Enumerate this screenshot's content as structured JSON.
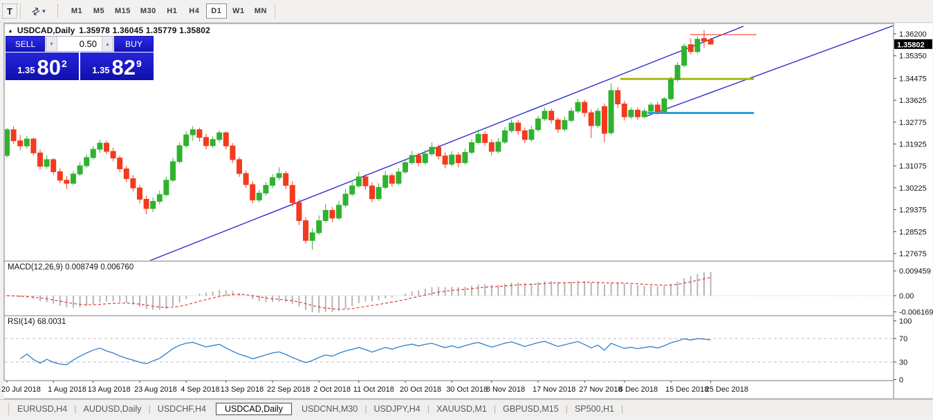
{
  "toolbar": {
    "text_tool": "T",
    "timeframes": [
      "M1",
      "M5",
      "M15",
      "M30",
      "H1",
      "H4",
      "D1",
      "W1",
      "MN"
    ],
    "active_timeframe": "D1"
  },
  "window": {
    "symbol_title": "USDCAD,Daily",
    "ohlc_text": "1.35978 1.36045 1.35779 1.35802"
  },
  "trade_panel": {
    "sell_label": "SELL",
    "buy_label": "BUY",
    "volume": "0.50",
    "sell_price_prefix": "1.35",
    "sell_price_big": "80",
    "sell_price_sup": "2",
    "buy_price_prefix": "1.35",
    "buy_price_big": "82",
    "buy_price_sup": "9"
  },
  "price_axis": {
    "labels": [
      "1.36200",
      "1.35350",
      "1.34475",
      "1.33625",
      "1.32775",
      "1.31925",
      "1.31075",
      "1.30225",
      "1.29375",
      "1.28525",
      "1.27675"
    ],
    "current_price": "1.35802"
  },
  "indicator_panels": {
    "macd": {
      "label": "MACD(12,26,9) 0.008749 0.006760",
      "value": 0.008749,
      "signal_value": 0.00676,
      "axis_labels": [
        {
          "v": 0.009459,
          "text": "0.009459"
        },
        {
          "v": 0.0,
          "text": "0.00"
        },
        {
          "v": -0.006169,
          "text": "-0.006169"
        }
      ]
    },
    "rsi": {
      "label": "RSI(14) 68.0031",
      "value": 68.0031,
      "axis_labels": [
        {
          "v": 100,
          "text": "100"
        },
        {
          "v": 70,
          "text": "70"
        },
        {
          "v": 30,
          "text": "30"
        },
        {
          "v": 0,
          "text": "0"
        }
      ],
      "levels": [
        70,
        30
      ]
    }
  },
  "date_axis": {
    "ticks": [
      {
        "t": 0,
        "label": "20 Jul 2018"
      },
      {
        "t": 7,
        "label": "1 Aug 2018"
      },
      {
        "t": 13,
        "label": "13 Aug 2018"
      },
      {
        "t": 20,
        "label": "23 Aug 2018"
      },
      {
        "t": 27,
        "label": "4 Sep 2018"
      },
      {
        "t": 33,
        "label": "13 Sep 2018"
      },
      {
        "t": 40,
        "label": "22 Sep 2018"
      },
      {
        "t": 47,
        "label": "2 Oct 2018"
      },
      {
        "t": 53,
        "label": "11 Oct 2018"
      },
      {
        "t": 60,
        "label": "20 Oct 2018"
      },
      {
        "t": 67,
        "label": "30 Oct 2018"
      },
      {
        "t": 73,
        "label": "8 Nov 2018"
      },
      {
        "t": 80,
        "label": "17 Nov 2018"
      },
      {
        "t": 87,
        "label": "27 Nov 2018"
      },
      {
        "t": 93,
        "label": "6 Dec 2018"
      },
      {
        "t": 100,
        "label": "15 Dec 2018"
      },
      {
        "t": 106,
        "label": "25 Dec 2018"
      }
    ]
  },
  "tabs": {
    "items": [
      {
        "label": "EURUSD,H4",
        "active": false
      },
      {
        "label": "AUDUSD,Daily",
        "active": false
      },
      {
        "label": "USDCHF,H4",
        "active": false
      },
      {
        "label": "USDCAD,Daily",
        "active": true
      },
      {
        "label": "USDCNH,M30",
        "active": false
      },
      {
        "label": "USDJPY,H4",
        "active": false
      },
      {
        "label": "XAUUSD,M1",
        "active": false
      },
      {
        "label": "GBPUSD,M15",
        "active": false
      },
      {
        "label": "SP500,H1",
        "active": false
      }
    ]
  },
  "chart_data": {
    "type": "candlestick",
    "symbol": "USDCAD",
    "timeframe": "Daily",
    "ohlc_current": {
      "open": 1.35978,
      "high": 1.36045,
      "low": 1.35779,
      "close": 1.35802
    },
    "colors": {
      "bull": "#2fb32f",
      "bear": "#f23b1e",
      "trendline": "#1f1fc8",
      "hline_red": "#ff5043",
      "hline_olive": "#a9b712",
      "hline_blue": "#2e9bdf",
      "macd_hist": "#b6b6b6",
      "macd_signal": "#e03636",
      "rsi_line": "#2e7fcb",
      "current_price_bg": "#000000",
      "current_price_fg": "#ffffff"
    },
    "candles": [
      [
        1.3148,
        1.3255,
        1.314,
        1.3248
      ],
      [
        1.3248,
        1.3262,
        1.3192,
        1.3205
      ],
      [
        1.3205,
        1.3228,
        1.3168,
        1.3185
      ],
      [
        1.3185,
        1.3225,
        1.3175,
        1.3212
      ],
      [
        1.3212,
        1.3218,
        1.3148,
        1.3158
      ],
      [
        1.3158,
        1.3172,
        1.3095,
        1.3106
      ],
      [
        1.3106,
        1.3148,
        1.3096,
        1.3132
      ],
      [
        1.3132,
        1.3138,
        1.3072,
        1.3085
      ],
      [
        1.3085,
        1.3098,
        1.304,
        1.3052
      ],
      [
        1.3052,
        1.3068,
        1.3018,
        1.304
      ],
      [
        1.304,
        1.3088,
        1.3032,
        1.3076
      ],
      [
        1.3076,
        1.3122,
        1.3068,
        1.3108
      ],
      [
        1.3108,
        1.3152,
        1.31,
        1.314
      ],
      [
        1.314,
        1.3185,
        1.3132,
        1.3172
      ],
      [
        1.3172,
        1.3208,
        1.3158,
        1.3196
      ],
      [
        1.3196,
        1.3205,
        1.3152,
        1.3164
      ],
      [
        1.3164,
        1.3178,
        1.3125,
        1.3138
      ],
      [
        1.3138,
        1.3148,
        1.3082,
        1.3096
      ],
      [
        1.3096,
        1.3108,
        1.3045,
        1.3058
      ],
      [
        1.3058,
        1.3072,
        1.3008,
        1.3022
      ],
      [
        1.3022,
        1.3035,
        1.2962,
        1.2978
      ],
      [
        1.2978,
        1.2992,
        1.292,
        1.2942
      ],
      [
        1.2942,
        1.2985,
        1.2928,
        1.297
      ],
      [
        1.297,
        1.3012,
        1.2958,
        1.2996
      ],
      [
        1.2996,
        1.3065,
        1.2988,
        1.3052
      ],
      [
        1.3052,
        1.3138,
        1.3045,
        1.3124
      ],
      [
        1.3124,
        1.3198,
        1.3118,
        1.3186
      ],
      [
        1.3186,
        1.3242,
        1.3178,
        1.3228
      ],
      [
        1.3228,
        1.3262,
        1.3205,
        1.3248
      ],
      [
        1.3248,
        1.3256,
        1.3202,
        1.3218
      ],
      [
        1.3218,
        1.3232,
        1.3172,
        1.3186
      ],
      [
        1.3186,
        1.3222,
        1.3178,
        1.321
      ],
      [
        1.321,
        1.3245,
        1.3198,
        1.3236
      ],
      [
        1.3236,
        1.3242,
        1.3172,
        1.3185
      ],
      [
        1.3185,
        1.3196,
        1.3118,
        1.3132
      ],
      [
        1.3132,
        1.3142,
        1.3065,
        1.3078
      ],
      [
        1.3078,
        1.309,
        1.3022,
        1.3035
      ],
      [
        1.3035,
        1.3048,
        1.2962,
        1.2975
      ],
      [
        1.2975,
        1.3015,
        1.2965,
        1.3002
      ],
      [
        1.3002,
        1.3045,
        1.2992,
        1.3032
      ],
      [
        1.3032,
        1.3075,
        1.3022,
        1.3062
      ],
      [
        1.3062,
        1.3102,
        1.3052,
        1.3078
      ],
      [
        1.3078,
        1.3088,
        1.3018,
        1.3032
      ],
      [
        1.3032,
        1.3048,
        1.295,
        1.2965
      ],
      [
        1.2965,
        1.2978,
        1.2878,
        1.2895
      ],
      [
        1.2895,
        1.2908,
        1.2806,
        1.2818
      ],
      [
        1.2818,
        1.2865,
        1.2782,
        1.2848
      ],
      [
        1.2848,
        1.2915,
        1.284,
        1.2895
      ],
      [
        1.2895,
        1.296,
        1.2886,
        1.2935
      ],
      [
        1.2935,
        1.2948,
        1.289,
        1.2905
      ],
      [
        1.2905,
        1.2972,
        1.2898,
        1.2955
      ],
      [
        1.2955,
        1.3018,
        1.2946,
        1.2998
      ],
      [
        1.2998,
        1.305,
        1.299,
        1.303
      ],
      [
        1.303,
        1.3085,
        1.3022,
        1.3065
      ],
      [
        1.3065,
        1.3075,
        1.3015,
        1.303
      ],
      [
        1.303,
        1.3044,
        1.2966,
        1.298
      ],
      [
        1.298,
        1.304,
        1.2972,
        1.3024
      ],
      [
        1.3024,
        1.3088,
        1.3016,
        1.307
      ],
      [
        1.307,
        1.308,
        1.3026,
        1.304
      ],
      [
        1.304,
        1.31,
        1.3032,
        1.3084
      ],
      [
        1.3084,
        1.3135,
        1.3076,
        1.312
      ],
      [
        1.312,
        1.3165,
        1.3112,
        1.3148
      ],
      [
        1.3148,
        1.3158,
        1.3106,
        1.312
      ],
      [
        1.312,
        1.317,
        1.3112,
        1.3154
      ],
      [
        1.3154,
        1.3198,
        1.3146,
        1.318
      ],
      [
        1.318,
        1.319,
        1.3132,
        1.3146
      ],
      [
        1.3146,
        1.316,
        1.3098,
        1.3114
      ],
      [
        1.3114,
        1.3165,
        1.3106,
        1.315
      ],
      [
        1.315,
        1.316,
        1.3102,
        1.312
      ],
      [
        1.312,
        1.3175,
        1.3112,
        1.316
      ],
      [
        1.316,
        1.3212,
        1.3152,
        1.3198
      ],
      [
        1.3198,
        1.3248,
        1.319,
        1.323
      ],
      [
        1.323,
        1.3242,
        1.3185,
        1.3198
      ],
      [
        1.3198,
        1.321,
        1.3148,
        1.3164
      ],
      [
        1.3164,
        1.3215,
        1.3156,
        1.32
      ],
      [
        1.32,
        1.3258,
        1.3192,
        1.3244
      ],
      [
        1.3244,
        1.3288,
        1.3236,
        1.3274
      ],
      [
        1.3274,
        1.3284,
        1.3228,
        1.3244
      ],
      [
        1.3244,
        1.3256,
        1.3196,
        1.321
      ],
      [
        1.321,
        1.3262,
        1.3202,
        1.3248
      ],
      [
        1.3248,
        1.3302,
        1.324,
        1.329
      ],
      [
        1.329,
        1.3334,
        1.3282,
        1.332
      ],
      [
        1.332,
        1.333,
        1.3272,
        1.3286
      ],
      [
        1.3286,
        1.3296,
        1.3236,
        1.325
      ],
      [
        1.325,
        1.3298,
        1.3242,
        1.3284
      ],
      [
        1.3284,
        1.3332,
        1.3276,
        1.332
      ],
      [
        1.332,
        1.3368,
        1.3312,
        1.3354
      ],
      [
        1.3354,
        1.3364,
        1.3298,
        1.3314
      ],
      [
        1.3314,
        1.3326,
        1.3215,
        1.3264
      ],
      [
        1.3264,
        1.3332,
        1.3256,
        1.332
      ],
      [
        1.3338,
        1.335,
        1.32,
        1.3234
      ],
      [
        1.3236,
        1.3428,
        1.3228,
        1.34
      ],
      [
        1.34,
        1.3414,
        1.3332,
        1.3348
      ],
      [
        1.3348,
        1.336,
        1.3284,
        1.3298
      ],
      [
        1.3298,
        1.3335,
        1.329,
        1.3324
      ],
      [
        1.3324,
        1.3334,
        1.3286,
        1.3298
      ],
      [
        1.3298,
        1.333,
        1.3292,
        1.332
      ],
      [
        1.332,
        1.3354,
        1.3304,
        1.3344
      ],
      [
        1.3344,
        1.3356,
        1.3306,
        1.3318
      ],
      [
        1.3318,
        1.3374,
        1.331,
        1.3368
      ],
      [
        1.3368,
        1.3454,
        1.3362,
        1.3442
      ],
      [
        1.3442,
        1.351,
        1.3434,
        1.3498
      ],
      [
        1.3498,
        1.3582,
        1.349,
        1.3572
      ],
      [
        1.3578,
        1.3602,
        1.354,
        1.3551
      ],
      [
        1.3551,
        1.361,
        1.3544,
        1.3599
      ],
      [
        1.3602,
        1.3634,
        1.3566,
        1.3592
      ],
      [
        1.35978,
        1.36045,
        1.35779,
        1.35802
      ]
    ],
    "overlays": {
      "trendlines": [
        {
          "t1": 20.83,
          "p1": 1.27326,
          "t2": 110.94,
          "p2": 1.36495
        },
        {
          "t1": 96.35,
          "p1": 1.3301,
          "t2": 133.54,
          "p2": 1.36522
        }
      ],
      "hlines": [
        {
          "price": 1.3617,
          "t1": 102.9,
          "t2": 112.9,
          "color_key": "hline_red",
          "width": 1.2
        },
        {
          "price": 1.3445,
          "t1": 92.4,
          "t2": 112.5,
          "color_key": "hline_olive",
          "width": 3
        },
        {
          "price": 1.3313,
          "t1": 96.5,
          "t2": 112.5,
          "color_key": "hline_blue",
          "width": 3
        }
      ]
    },
    "indicators": [
      {
        "type": "MACD",
        "params": [
          12,
          26,
          9
        ],
        "value": 0.008749,
        "signal": 0.00676
      },
      {
        "type": "RSI",
        "params": [
          14
        ],
        "value": 68.0031
      }
    ]
  }
}
